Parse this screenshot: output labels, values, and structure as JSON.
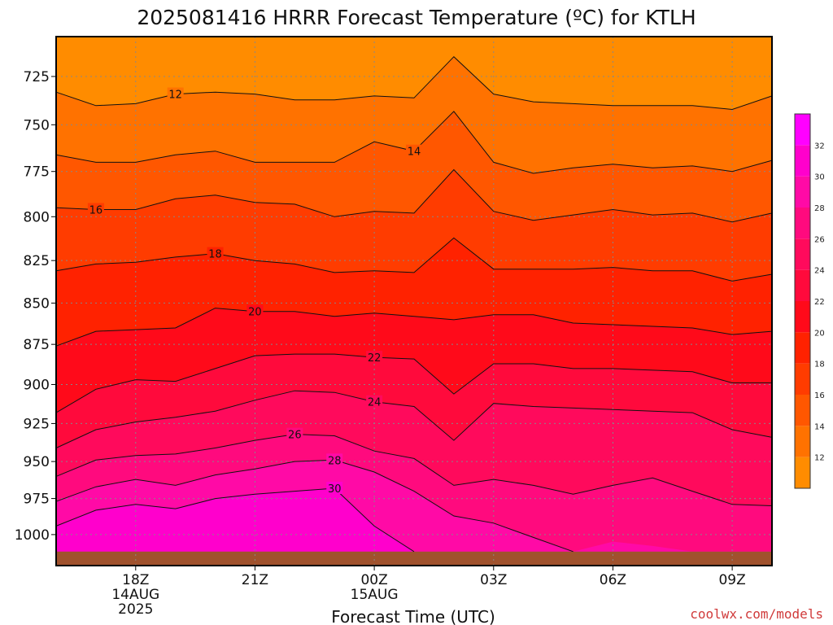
{
  "page": {
    "title": "2025081416 HRRR Forecast Temperature (ºC) for KTLH",
    "credit": "coolwx.com/models"
  },
  "chart_data": {
    "type": "contour",
    "title": "2025081416 HRRR Forecast Temperature (ºC) for KTLH",
    "xlabel": "Forecast Time (UTC)",
    "ylabel": "",
    "x_hours": [
      16,
      17,
      18,
      19,
      20,
      21,
      22,
      23,
      24,
      25,
      26,
      27,
      28,
      29,
      30,
      31,
      32,
      33,
      34
    ],
    "xlim": [
      16,
      34
    ],
    "x_ticks": [
      {
        "hour": 18,
        "lines": [
          "18Z",
          "14AUG",
          "2025"
        ]
      },
      {
        "hour": 21,
        "lines": [
          "21Z"
        ]
      },
      {
        "hour": 24,
        "lines": [
          "00Z",
          "15AUG"
        ]
      },
      {
        "hour": 27,
        "lines": [
          "03Z"
        ]
      },
      {
        "hour": 30,
        "lines": [
          "06Z"
        ]
      },
      {
        "hour": 33,
        "lines": [
          "09Z"
        ]
      }
    ],
    "y_ticks": [
      725,
      750,
      775,
      800,
      825,
      850,
      875,
      900,
      925,
      950,
      975,
      1000
    ],
    "ylim_hpa": [
      705,
      1022
    ],
    "y_scale": "log-pressure, inverted",
    "grid": true,
    "surface_pressure_hpa": 1012,
    "ground_color": "#a0522d",
    "contour_interval": 2,
    "isotherms": [
      {
        "value": 12,
        "label": "12",
        "pressure": [
          733,
          740,
          739,
          734,
          733,
          734,
          737,
          737,
          735,
          736,
          715,
          734,
          738,
          739,
          740,
          740,
          740,
          742,
          735
        ],
        "label_hour": 19.0
      },
      {
        "value": 14,
        "label": "14",
        "pressure": [
          766,
          770,
          770,
          766,
          764,
          770,
          770,
          770,
          759,
          764,
          743,
          770,
          776,
          773,
          771,
          773,
          772,
          775,
          769
        ],
        "label_hour": 25.0
      },
      {
        "value": 16,
        "label": "16",
        "pressure": [
          795,
          796,
          796,
          790,
          788,
          792,
          793,
          800,
          797,
          798,
          774,
          797,
          802,
          799,
          796,
          799,
          798,
          803,
          798
        ],
        "label_hour": 17.0
      },
      {
        "value": 18,
        "label": "18",
        "pressure": [
          831,
          827,
          826,
          823,
          821,
          825,
          827,
          832,
          831,
          832,
          812,
          830,
          830,
          830,
          829,
          831,
          831,
          837,
          833
        ],
        "label_hour": 20.0
      },
      {
        "value": 20,
        "label": "20",
        "pressure": [
          876,
          867,
          866,
          865,
          853,
          855,
          855,
          858,
          856,
          858,
          860,
          857,
          857,
          862,
          863,
          864,
          865,
          869,
          867
        ],
        "label_hour": 21.0
      },
      {
        "value": 22,
        "label": "22",
        "pressure": [
          918,
          903,
          897,
          898,
          890,
          882,
          881,
          881,
          883,
          884,
          906,
          887,
          887,
          890,
          890,
          891,
          892,
          899,
          899
        ],
        "label_hour": 24.0
      },
      {
        "value": 24,
        "label": "24",
        "pressure": [
          941,
          929,
          924,
          921,
          917,
          910,
          904,
          905,
          911,
          914,
          936,
          912,
          914,
          915,
          916,
          917,
          918,
          929,
          934
        ],
        "label_hour": 24.0
      },
      {
        "value": 26,
        "label": "26",
        "pressure": [
          960,
          949,
          946,
          945,
          941,
          936,
          932,
          933,
          943,
          948,
          966,
          962,
          966,
          972,
          966,
          961,
          970,
          979,
          980
        ],
        "label_hour": 22.0
      },
      {
        "value": 28,
        "label": "28",
        "pressure": [
          977,
          967,
          962,
          966,
          959,
          955,
          950,
          949,
          957,
          970,
          987,
          992,
          1002,
          1012,
          1005,
          1008,
          1012,
          1012,
          1012
        ],
        "label_hour": 23.0
      },
      {
        "value": 30,
        "label": "30",
        "pressure": [
          994,
          983,
          979,
          982,
          975,
          972,
          970,
          968,
          994,
          1012,
          1012,
          1012,
          1012,
          1012,
          1012,
          1012,
          1012,
          1012,
          1012
        ],
        "label_hour": 23.0
      }
    ],
    "colorbar": {
      "ticks": [
        12,
        14,
        16,
        18,
        20,
        22,
        24,
        26,
        28,
        30,
        32
      ],
      "levels": [
        10,
        12,
        14,
        16,
        18,
        20,
        22,
        24,
        26,
        28,
        30,
        32,
        34
      ],
      "colors": [
        "#ff8c00",
        "#ff7200",
        "#ff5700",
        "#ff3c00",
        "#ff2200",
        "#ff0a1a",
        "#ff0a3c",
        "#ff0a5c",
        "#ff0a7e",
        "#ff0aa6",
        "#ff00cc",
        "#ff00ff"
      ]
    }
  }
}
